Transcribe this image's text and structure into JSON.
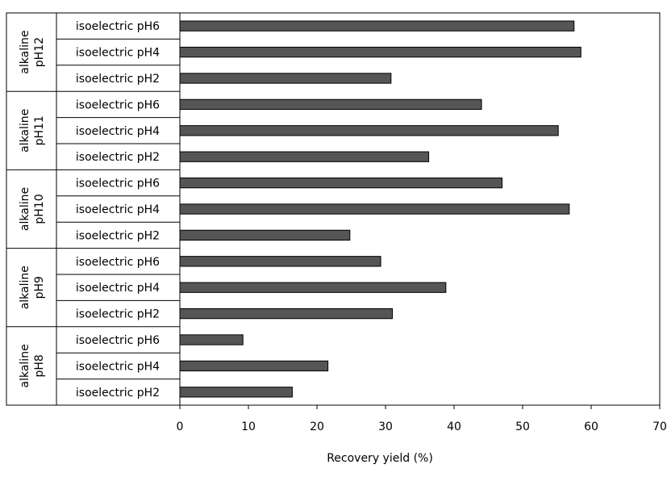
{
  "chart_data": {
    "type": "bar",
    "orientation": "horizontal",
    "xlabel": "Recovery yield (%)",
    "xlim": [
      0,
      70
    ],
    "xticks": [
      0,
      10,
      20,
      30,
      40,
      50,
      60,
      70
    ],
    "grid": false,
    "bar_color": "#555555",
    "groups": [
      {
        "label_line1": "alkaline",
        "label_line2": "pH12",
        "categories": [
          "isoelectric pH6",
          "isoelectric pH4",
          "isoelectric pH2"
        ],
        "values": [
          57.5,
          58.5,
          30.8
        ]
      },
      {
        "label_line1": "alkaline",
        "label_line2": "pH11",
        "categories": [
          "isoelectric pH6",
          "isoelectric pH4",
          "isoelectric pH2"
        ],
        "values": [
          44.0,
          55.2,
          36.3
        ]
      },
      {
        "label_line1": "alkaline",
        "label_line2": "pH10",
        "categories": [
          "isoelectric pH6",
          "isoelectric pH4",
          "isoelectric pH2"
        ],
        "values": [
          47.0,
          56.8,
          24.8
        ]
      },
      {
        "label_line1": "alkaline",
        "label_line2": "pH9",
        "categories": [
          "isoelectric pH6",
          "isoelectric pH4",
          "isoelectric pH2"
        ],
        "values": [
          29.3,
          38.8,
          31.0
        ]
      },
      {
        "label_line1": "alkaline",
        "label_line2": "pH8",
        "categories": [
          "isoelectric pH6",
          "isoelectric pH4",
          "isoelectric pH2"
        ],
        "values": [
          9.2,
          21.6,
          16.4
        ]
      }
    ]
  }
}
